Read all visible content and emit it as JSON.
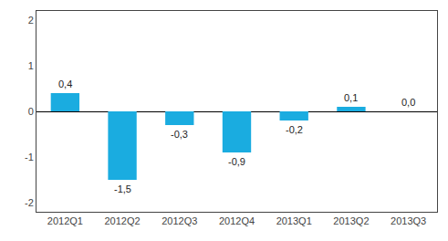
{
  "chart_data": {
    "type": "bar",
    "categories": [
      "2012Q1",
      "2012Q2",
      "2012Q3",
      "2012Q4",
      "2013Q1",
      "2013Q2",
      "2013Q3"
    ],
    "values": [
      0.4,
      -1.5,
      -0.3,
      -0.9,
      -0.2,
      0.1,
      0.0
    ],
    "value_labels": [
      "0,4",
      "-1,5",
      "-0,3",
      "-0,9",
      "-0,2",
      "0,1",
      "0,0"
    ],
    "data_labels": true,
    "color": "#1aace0",
    "ylim": [
      -2.2,
      2.2
    ],
    "yticks": [
      -2,
      -1,
      0,
      1,
      2
    ],
    "grid": false
  }
}
